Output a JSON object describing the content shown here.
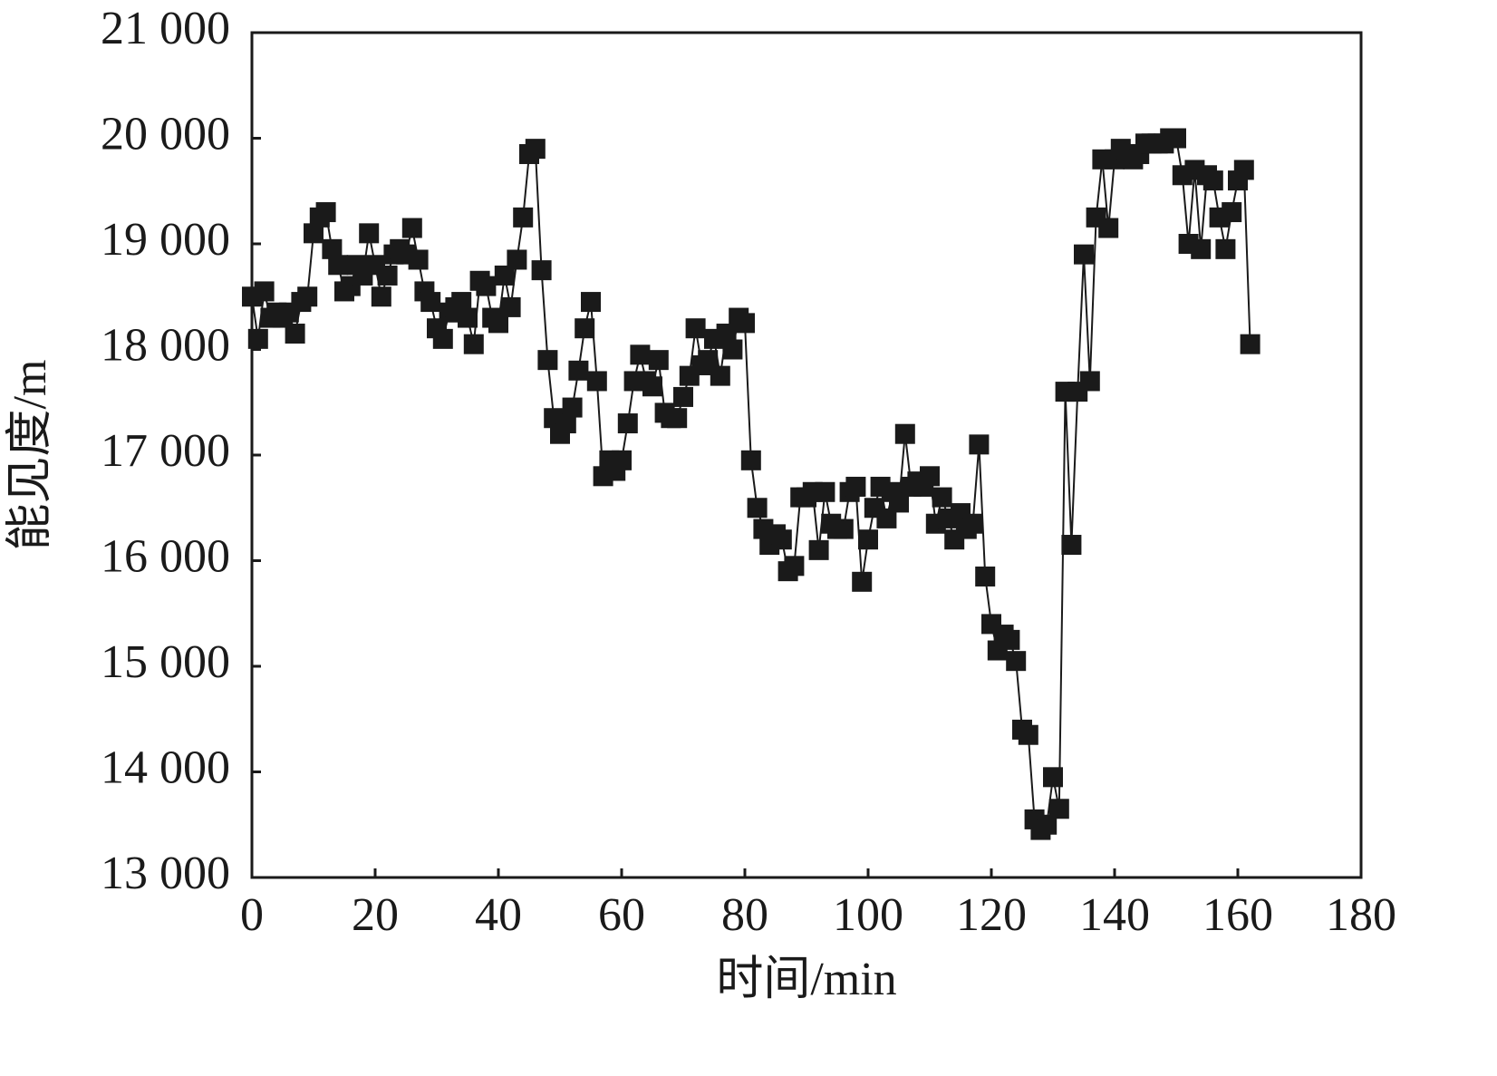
{
  "chart_data": {
    "type": "line",
    "xlabel": "时间/min",
    "ylabel": "能见度/m",
    "xlim": [
      0,
      180
    ],
    "xticks": [
      0,
      20,
      40,
      60,
      80,
      100,
      120,
      140,
      160,
      180
    ],
    "ylim": [
      13000,
      21000
    ],
    "yticks": [
      {
        "value": 13000,
        "label": "13 000"
      },
      {
        "value": 14000,
        "label": "14 000"
      },
      {
        "value": 15000,
        "label": "15 000"
      },
      {
        "value": 16000,
        "label": "16 000"
      },
      {
        "value": 17000,
        "label": "17 000"
      },
      {
        "value": 18000,
        "label": "18 000"
      },
      {
        "value": 19000,
        "label": "19 000"
      },
      {
        "value": 20000,
        "label": "20 000"
      },
      {
        "value": 21000,
        "label": "21 000"
      }
    ],
    "color": "#1a1a1a",
    "x": [
      0,
      1,
      2,
      3,
      4,
      5,
      6,
      7,
      8,
      9,
      10,
      11,
      12,
      13,
      14,
      15,
      16,
      17,
      18,
      19,
      20,
      21,
      22,
      23,
      24,
      25,
      26,
      27,
      28,
      29,
      30,
      31,
      32,
      33,
      34,
      35,
      36,
      37,
      38,
      39,
      40,
      41,
      42,
      43,
      44,
      45,
      46,
      47,
      48,
      49,
      50,
      51,
      52,
      53,
      54,
      55,
      56,
      57,
      58,
      59,
      60,
      61,
      62,
      63,
      64,
      65,
      66,
      67,
      68,
      69,
      70,
      71,
      72,
      73,
      74,
      75,
      76,
      77,
      78,
      79,
      80,
      81,
      82,
      83,
      84,
      85,
      86,
      87,
      88,
      89,
      90,
      91,
      92,
      93,
      94,
      95,
      96,
      97,
      98,
      99,
      100,
      101,
      102,
      103,
      104,
      105,
      106,
      107,
      108,
      109,
      110,
      111,
      112,
      113,
      114,
      115,
      116,
      117,
      118,
      119,
      120,
      121,
      122,
      123,
      124,
      125,
      126,
      127,
      128,
      129,
      130,
      131,
      132,
      133,
      134,
      135,
      136,
      137,
      138,
      139,
      140,
      141,
      142,
      143,
      144,
      145,
      146,
      147,
      148,
      149,
      150,
      151,
      152,
      153,
      154,
      155,
      156,
      157,
      158,
      159,
      160,
      161,
      162
    ],
    "values": [
      18500,
      18100,
      18550,
      18300,
      18350,
      18300,
      18350,
      18150,
      18450,
      18500,
      19100,
      19250,
      19300,
      18950,
      18800,
      18550,
      18600,
      18800,
      18700,
      19100,
      18800,
      18500,
      18700,
      18900,
      18950,
      18900,
      19150,
      18850,
      18550,
      18450,
      18200,
      18100,
      18350,
      18400,
      18450,
      18300,
      18050,
      18650,
      18600,
      18300,
      18250,
      18700,
      18400,
      18850,
      19250,
      19850,
      19900,
      18750,
      17900,
      17350,
      17200,
      17300,
      17450,
      17800,
      18200,
      18450,
      17700,
      16800,
      16950,
      16850,
      16950,
      17300,
      17700,
      17950,
      17700,
      17650,
      17900,
      17400,
      17350,
      17350,
      17550,
      17750,
      18200,
      17850,
      17900,
      18100,
      17750,
      18150,
      18000,
      18300,
      18250,
      16950,
      16500,
      16300,
      16150,
      16250,
      16200,
      15900,
      15950,
      16600,
      16600,
      16650,
      16100,
      16650,
      16350,
      16300,
      16300,
      16650,
      16700,
      15800,
      16200,
      16500,
      16700,
      16400,
      16650,
      16550,
      17200,
      16700,
      16750,
      16700,
      16800,
      16350,
      16600,
      16400,
      16200,
      16450,
      16300,
      16350,
      17100,
      15850,
      15400,
      15150,
      15300,
      15250,
      15050,
      14400,
      14350,
      13550,
      13450,
      13500,
      13950,
      13650,
      17600,
      16150,
      17600,
      18900,
      17700,
      19250,
      19800,
      19150,
      19800,
      19900,
      19850,
      19800,
      19850,
      19950,
      19950,
      19950,
      19950,
      20000,
      20000,
      19650,
      19000,
      19700,
      18950,
      19650,
      19600,
      19250,
      18950,
      19300,
      19600,
      19700,
      18050
    ]
  }
}
